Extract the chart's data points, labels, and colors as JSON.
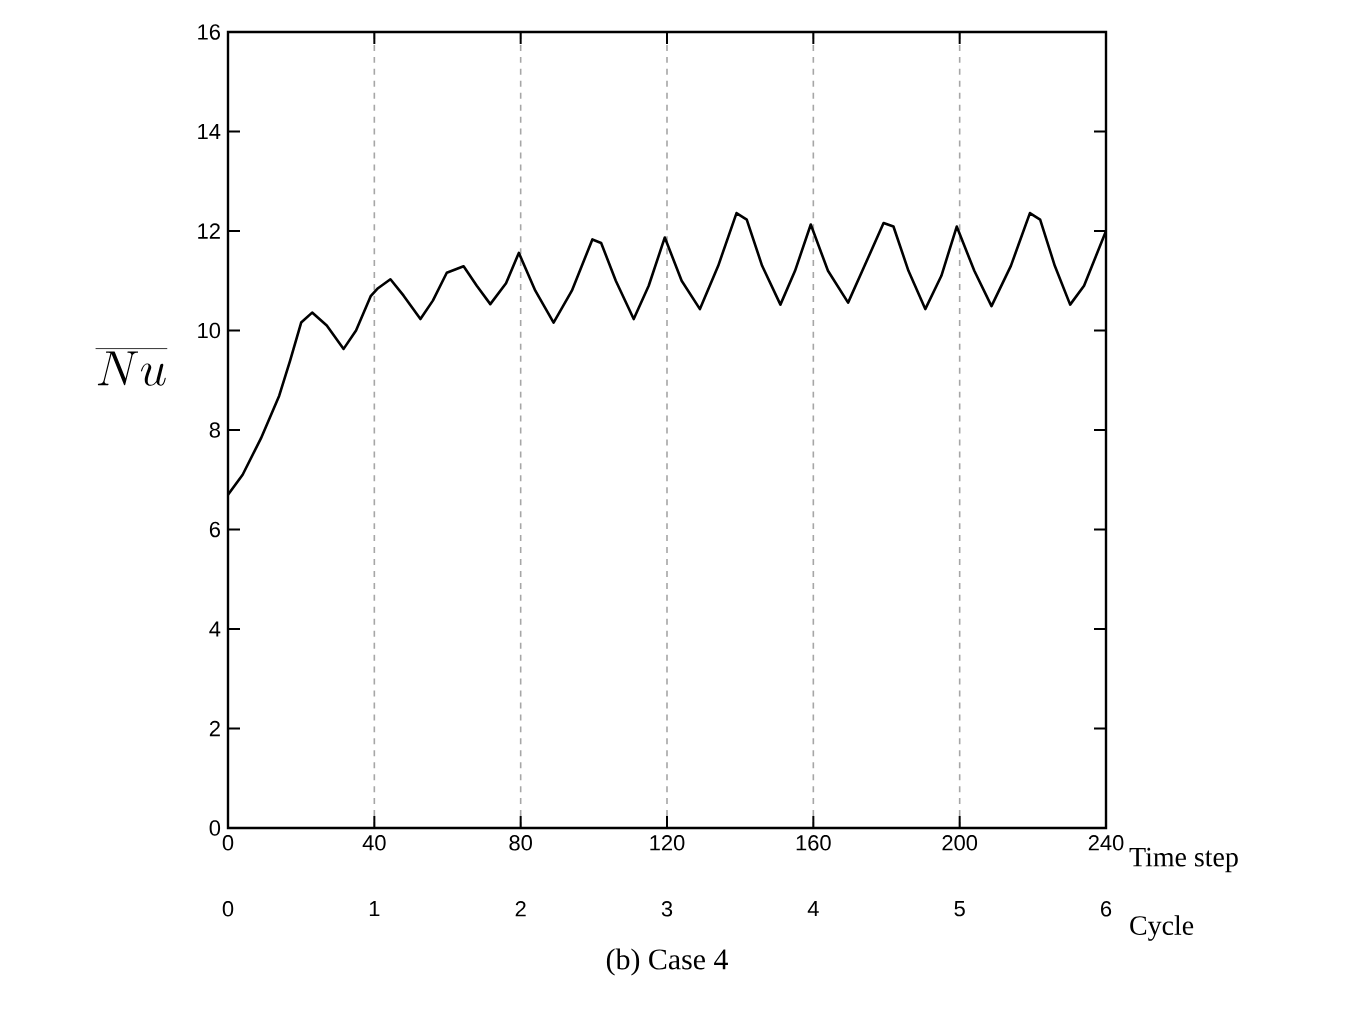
{
  "chart_data": {
    "type": "line",
    "title": "(b) Case 4",
    "xlabel": "Time step",
    "ylabel": "\\overline{Nu}",
    "x2label": "Cycle",
    "x": [
      0,
      4,
      9,
      14,
      17,
      20,
      23,
      27,
      31.6,
      35,
      39,
      41,
      44.4,
      48,
      52.6,
      56,
      59.8,
      64.4,
      68,
      71.7,
      76,
      79.5,
      84,
      89,
      94,
      99.6,
      102,
      106,
      110.9,
      115,
      119.4,
      124,
      129,
      134,
      139,
      141.8,
      146,
      151,
      155,
      159.3,
      164,
      169.5,
      174,
      179.2,
      181.9,
      186,
      190.6,
      195,
      199.2,
      204,
      208.7,
      214,
      219.2,
      222,
      226,
      230.2,
      234,
      240
    ],
    "series": [
      {
        "color": "#000000",
        "values": [
          6.7,
          7.1,
          7.83,
          8.69,
          9.4,
          10.16,
          10.36,
          10.1,
          9.63,
          10.0,
          10.69,
          10.85,
          11.03,
          10.7,
          10.23,
          10.6,
          11.16,
          11.29,
          10.9,
          10.53,
          10.95,
          11.56,
          10.8,
          10.16,
          10.8,
          11.83,
          11.76,
          11.0,
          10.23,
          10.9,
          11.87,
          11.0,
          10.43,
          11.3,
          12.36,
          12.23,
          11.3,
          10.52,
          11.2,
          12.13,
          11.2,
          10.56,
          11.3,
          12.16,
          12.09,
          11.2,
          10.43,
          11.1,
          12.09,
          11.2,
          10.49,
          11.3,
          12.36,
          12.23,
          11.3,
          10.52,
          10.9,
          12.0
        ]
      }
    ],
    "xlim": [
      0,
      240
    ],
    "xticks": [
      0,
      40,
      80,
      120,
      160,
      200,
      240
    ],
    "ylim": [
      0,
      16
    ],
    "yticks": [
      0,
      2,
      4,
      6,
      8,
      10,
      12,
      14,
      16
    ],
    "x2lim": [
      0,
      6
    ],
    "x2ticks": [
      0,
      1,
      2,
      3,
      4,
      5,
      6
    ],
    "grid": "x"
  }
}
